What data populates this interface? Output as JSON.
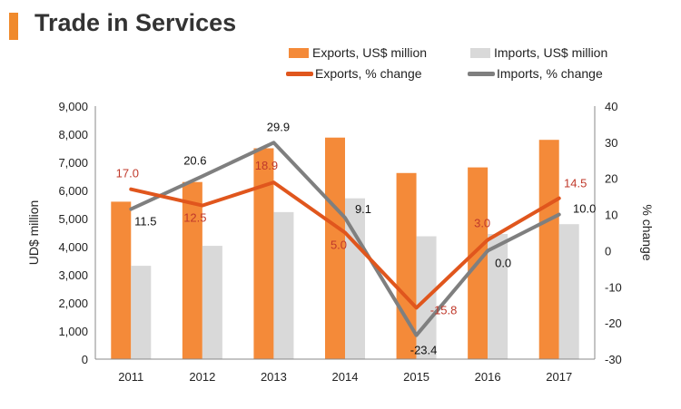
{
  "header": {
    "title": "Trade in Services"
  },
  "colors": {
    "exports_bar": "#f48a39",
    "imports_bar": "#d9d9d9",
    "exports_line": "#e0561d",
    "imports_line": "#7f7f7f",
    "exports_label": "#c0392b",
    "imports_label": "#111111",
    "axis": "#888888",
    "title_accent": "#f08a2c"
  },
  "legend": {
    "exports_bar": "Exports, US$ million",
    "imports_bar": "Imports, US$ million",
    "exports_line": "Exports, % change",
    "imports_line": "Imports, % change"
  },
  "chart_data": {
    "type": "bar",
    "title": "Trade in Services",
    "categories": [
      "2011",
      "2012",
      "2013",
      "2014",
      "2015",
      "2016",
      "2017"
    ],
    "ylabel": "UD$ million",
    "y2label": "% change",
    "ylim": [
      0,
      9000
    ],
    "y_ticks": [
      "0",
      "1,000",
      "2,000",
      "3,000",
      "4,000",
      "5,000",
      "6,000",
      "7,000",
      "8,000",
      "9,000"
    ],
    "y2lim": [
      -30,
      40
    ],
    "y2_ticks": [
      "-30",
      "-20",
      "-10",
      "0",
      "10",
      "20",
      "30",
      "40"
    ],
    "bar_series": [
      {
        "name": "Exports, US$ million",
        "values": [
          5600,
          6300,
          7500,
          7880,
          6620,
          6820,
          7800
        ]
      },
      {
        "name": "Imports, US$ million",
        "values": [
          3320,
          4030,
          5230,
          5720,
          4370,
          4450,
          4800
        ]
      }
    ],
    "line_series": [
      {
        "name": "Exports, % change",
        "values": [
          17.0,
          12.5,
          18.9,
          5.0,
          -15.8,
          3.0,
          14.5
        ],
        "labels": [
          "17.0",
          "12.5",
          "18.9",
          "5.0",
          "-15.8",
          "3.0",
          "14.5"
        ]
      },
      {
        "name": "Imports, % change",
        "values": [
          11.5,
          20.6,
          29.9,
          9.1,
          -23.4,
          0.0,
          10.0
        ],
        "labels": [
          "11.5",
          "20.6",
          "29.9",
          "9.1",
          "-23.4",
          "0.0",
          "10.0"
        ]
      }
    ]
  }
}
